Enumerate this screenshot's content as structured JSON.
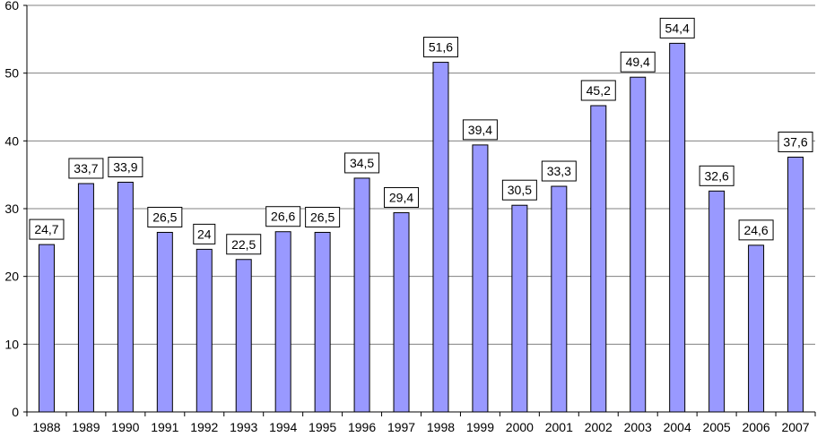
{
  "chart_data": {
    "type": "bar",
    "title": "",
    "xlabel": "",
    "ylabel": "",
    "categories": [
      "1988",
      "1989",
      "1990",
      "1991",
      "1992",
      "1993",
      "1994",
      "1995",
      "1996",
      "1997",
      "1998",
      "1999",
      "2000",
      "2001",
      "2002",
      "2003",
      "2004",
      "2005",
      "2006",
      "2007"
    ],
    "values": [
      24.7,
      33.7,
      33.9,
      26.5,
      24,
      22.5,
      26.6,
      26.5,
      34.5,
      29.4,
      51.6,
      39.4,
      30.5,
      33.3,
      45.2,
      49.4,
      54.4,
      32.6,
      24.6,
      37.6
    ],
    "data_labels": [
      "24,7",
      "33,7",
      "33,9",
      "26,5",
      "24",
      "22,5",
      "26,6",
      "26,5",
      "34,5",
      "29,4",
      "51,6",
      "39,4",
      "30,5",
      "33,3",
      "45,2",
      "49,4",
      "54,4",
      "32,6",
      "24,6",
      "37,6"
    ],
    "ylim": [
      0,
      60
    ],
    "yticks": [
      0,
      10,
      20,
      30,
      40,
      50,
      60
    ],
    "ytick_labels": [
      "0",
      "10",
      "20",
      "30",
      "40",
      "50",
      "60"
    ],
    "grid": true,
    "legend": "none",
    "colors": {
      "bar_fill": "#9999ff",
      "bar_stroke": "#000000",
      "grid": "#808080",
      "axis": "#000000",
      "background": "#ffffff"
    }
  }
}
